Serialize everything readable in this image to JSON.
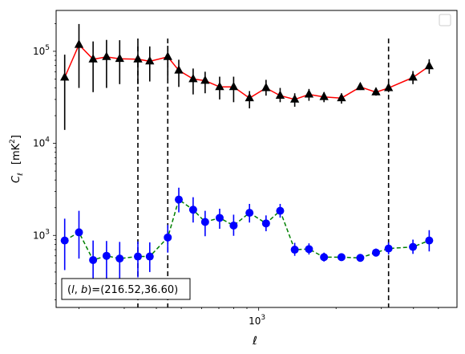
{
  "chart_data": {
    "type": "scatter",
    "xscale": "log",
    "yscale": "log",
    "xlim": [
      163,
      5905
    ],
    "ylim": [
      165,
      278000
    ],
    "xlabel": "ℓ",
    "ylabel_main": "C",
    "ylabel_sub": "ℓ",
    "ylabel_unit": "[mK",
    "ylabel_exp": "2",
    "ylabel_close": "]",
    "x_ticks": [
      {
        "value": 1000,
        "base": "10",
        "exp": "3"
      }
    ],
    "y_ticks": [
      {
        "value": 1000,
        "base": "10",
        "exp": "3"
      },
      {
        "value": 10000,
        "base": "10",
        "exp": "4"
      },
      {
        "value": 100000,
        "base": "10",
        "exp": "5"
      }
    ],
    "grid": false,
    "legend": "top-right",
    "legend_entries": [],
    "annotation": "(l, b)=(216.52,36.60)",
    "vlines": [
      339,
      443,
      3200
    ],
    "series": [
      {
        "line_color": "#ff0000",
        "line_style": "solid",
        "marker": "triangle",
        "marker_color": "#000000",
        "errorbar_color": "#000000",
        "points": [
          {
            "x": 176,
            "y": 52000,
            "lo": 14000,
            "hi": 92000
          },
          {
            "x": 200,
            "y": 118000,
            "lo": 40000,
            "hi": 198000
          },
          {
            "x": 227,
            "y": 82000,
            "lo": 36000,
            "hi": 128000
          },
          {
            "x": 256,
            "y": 87000,
            "lo": 40000,
            "hi": 133000
          },
          {
            "x": 288,
            "y": 83000,
            "lo": 44000,
            "hi": 132000
          },
          {
            "x": 339,
            "y": 82000,
            "lo": 44000,
            "hi": 122000
          },
          {
            "x": 377,
            "y": 78000,
            "lo": 47000,
            "hi": 113000
          },
          {
            "x": 443,
            "y": 87000,
            "lo": 49000,
            "hi": 115000
          },
          {
            "x": 489,
            "y": 62000,
            "lo": 41000,
            "hi": 81000
          },
          {
            "x": 556,
            "y": 50000,
            "lo": 34000,
            "hi": 65000
          },
          {
            "x": 619,
            "y": 48000,
            "lo": 35000,
            "hi": 60000
          },
          {
            "x": 705,
            "y": 41000,
            "lo": 30000,
            "hi": 53000
          },
          {
            "x": 799,
            "y": 41000,
            "lo": 28000,
            "hi": 53000
          },
          {
            "x": 921,
            "y": 31000,
            "lo": 24000,
            "hi": 37000
          },
          {
            "x": 1068,
            "y": 40000,
            "lo": 33000,
            "hi": 49000
          },
          {
            "x": 1212,
            "y": 33000,
            "lo": 28000,
            "hi": 40000
          },
          {
            "x": 1381,
            "y": 30000,
            "lo": 25000,
            "hi": 35000
          },
          {
            "x": 1569,
            "y": 34000,
            "lo": 29000,
            "hi": 39000
          },
          {
            "x": 1795,
            "y": 32000,
            "lo": 28000,
            "hi": 36000
          },
          {
            "x": 2099,
            "y": 31000,
            "lo": 27000,
            "hi": 35000
          },
          {
            "x": 2484,
            "y": 41000,
            "lo": 38000,
            "hi": 45000
          },
          {
            "x": 2859,
            "y": 36000,
            "lo": 33000,
            "hi": 40000
          },
          {
            "x": 3200,
            "y": 40000,
            "lo": 36000,
            "hi": 45000
          },
          {
            "x": 3981,
            "y": 52000,
            "lo": 44000,
            "hi": 61000
          },
          {
            "x": 4605,
            "y": 69000,
            "lo": 57000,
            "hi": 82000
          }
        ]
      },
      {
        "line_color": "#008000",
        "line_style": "dashed",
        "marker": "circle",
        "marker_color": "#0000ff",
        "errorbar_color": "#0000ff",
        "points": [
          {
            "x": 176,
            "y": 880,
            "lo": 420,
            "hi": 1520
          },
          {
            "x": 200,
            "y": 1080,
            "lo": 560,
            "hi": 1850
          },
          {
            "x": 227,
            "y": 540,
            "lo": 310,
            "hi": 880
          },
          {
            "x": 256,
            "y": 600,
            "lo": 330,
            "hi": 870
          },
          {
            "x": 288,
            "y": 560,
            "lo": 330,
            "hi": 850
          },
          {
            "x": 339,
            "y": 590,
            "lo": 350,
            "hi": 860
          },
          {
            "x": 377,
            "y": 590,
            "lo": 400,
            "hi": 840
          },
          {
            "x": 443,
            "y": 950,
            "lo": 650,
            "hi": 1300
          },
          {
            "x": 489,
            "y": 2450,
            "lo": 1780,
            "hi": 3300
          },
          {
            "x": 556,
            "y": 1900,
            "lo": 1380,
            "hi": 2600
          },
          {
            "x": 619,
            "y": 1400,
            "lo": 980,
            "hi": 1850
          },
          {
            "x": 705,
            "y": 1550,
            "lo": 1180,
            "hi": 1950
          },
          {
            "x": 799,
            "y": 1280,
            "lo": 990,
            "hi": 1680
          },
          {
            "x": 921,
            "y": 1760,
            "lo": 1380,
            "hi": 2200
          },
          {
            "x": 1068,
            "y": 1350,
            "lo": 1110,
            "hi": 1650
          },
          {
            "x": 1212,
            "y": 1850,
            "lo": 1560,
            "hi": 2200
          },
          {
            "x": 1381,
            "y": 700,
            "lo": 600,
            "hi": 830
          },
          {
            "x": 1569,
            "y": 710,
            "lo": 620,
            "hi": 820
          },
          {
            "x": 1795,
            "y": 580,
            "lo": 520,
            "hi": 650
          },
          {
            "x": 2099,
            "y": 580,
            "lo": 530,
            "hi": 640
          },
          {
            "x": 2484,
            "y": 570,
            "lo": 530,
            "hi": 620
          },
          {
            "x": 2859,
            "y": 650,
            "lo": 590,
            "hi": 720
          },
          {
            "x": 3200,
            "y": 720,
            "lo": 620,
            "hi": 840
          },
          {
            "x": 3981,
            "y": 750,
            "lo": 630,
            "hi": 900
          },
          {
            "x": 4605,
            "y": 880,
            "lo": 670,
            "hi": 1140
          }
        ]
      }
    ]
  }
}
